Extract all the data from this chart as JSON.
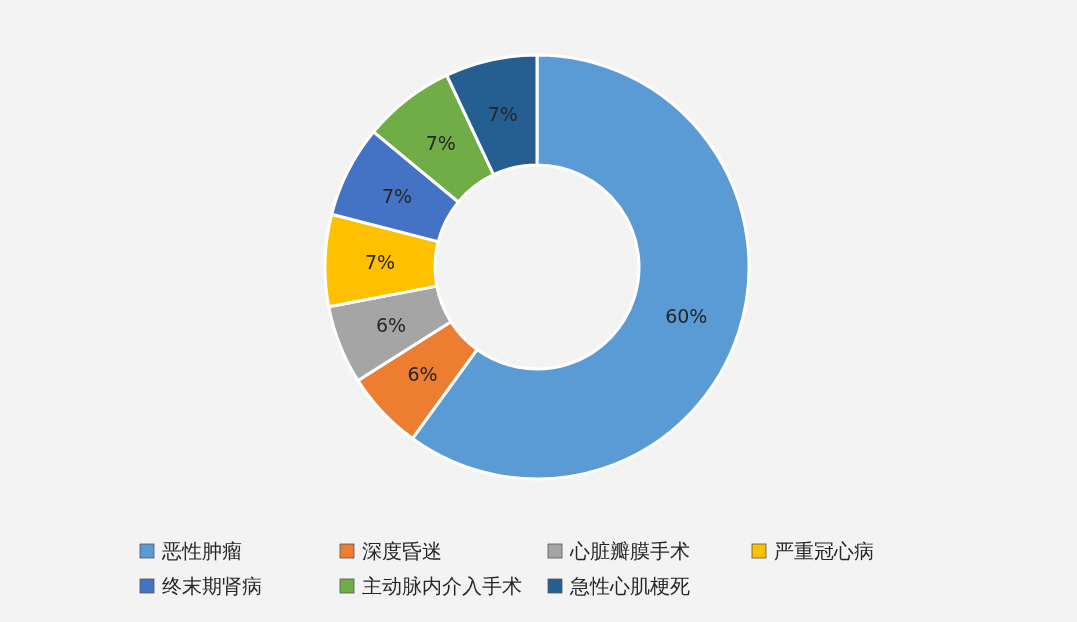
{
  "chart_data": {
    "type": "donut",
    "categories": [
      "恶性肿瘤",
      "深度昏迷",
      "心脏瓣膜手术",
      "严重冠心病",
      "终末期肾病",
      "主动脉内介入手术",
      "急性心肌梗死"
    ],
    "values": [
      60,
      6,
      6,
      7,
      7,
      7,
      7
    ],
    "colors": [
      "#5b9bd5",
      "#ed7d31",
      "#a5a5a5",
      "#ffc000",
      "#4472c4",
      "#70ad47",
      "#255e91"
    ],
    "value_labels": [
      "60%",
      "6%",
      "6%",
      "7%",
      "7%",
      "7%",
      "7%"
    ],
    "legend": "bottom"
  }
}
